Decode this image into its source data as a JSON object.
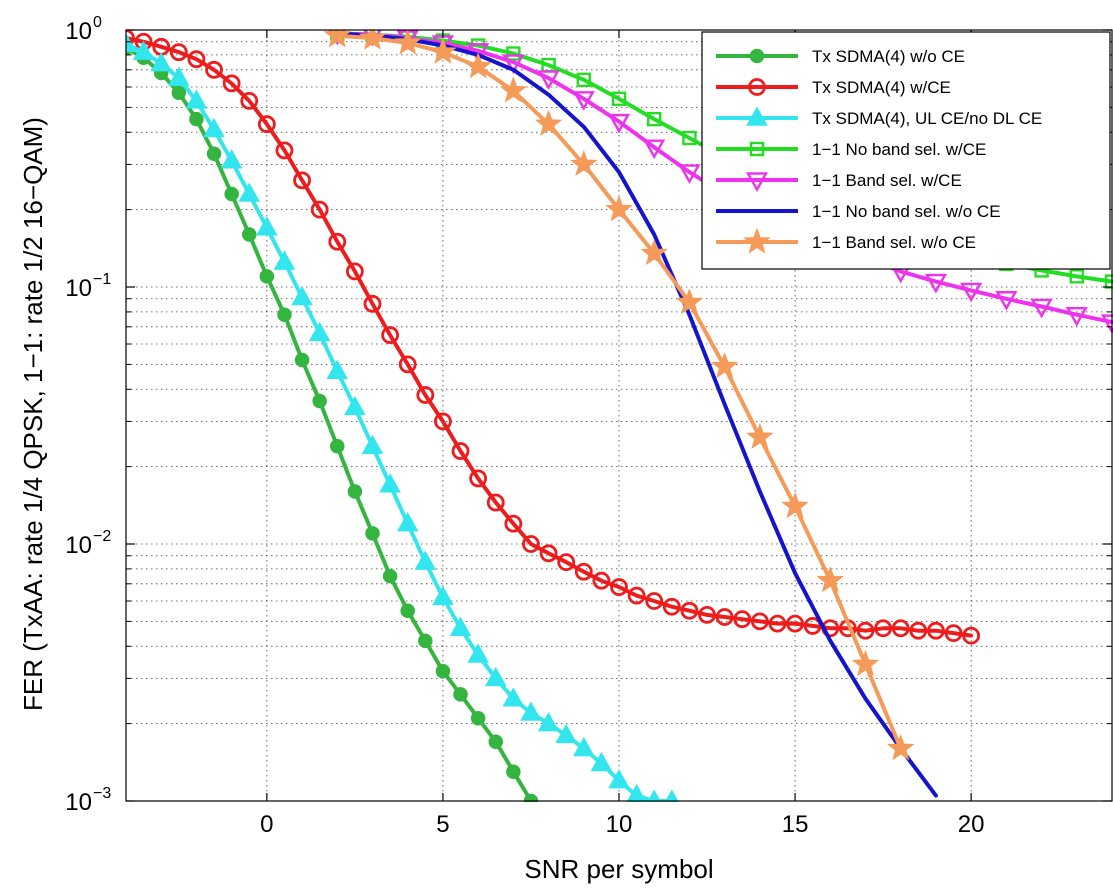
{
  "chart_data": {
    "type": "line",
    "title": "",
    "xlabel": "SNR per symbol",
    "ylabel": "FER (TxAA: rate 1/4 QPSK, 1−1: rate 1/2 16−QAM)",
    "xlim": [
      -4,
      24
    ],
    "ylim": [
      0.001,
      1
    ],
    "yscale": "log",
    "grid": true,
    "legend_position": "top-right",
    "x_ticks": [
      {
        "value": 0,
        "label": "0"
      },
      {
        "value": 5,
        "label": "5"
      },
      {
        "value": 10,
        "label": "10"
      },
      {
        "value": 15,
        "label": "15"
      },
      {
        "value": 20,
        "label": "20"
      }
    ],
    "y_ticks": [
      {
        "value": 0.001,
        "base": "10",
        "exp": "−3"
      },
      {
        "value": 0.01,
        "base": "10",
        "exp": "−2"
      },
      {
        "value": 0.1,
        "base": "10",
        "exp": "−1"
      },
      {
        "value": 1,
        "base": "10",
        "exp": "0"
      }
    ],
    "series": [
      {
        "name": "Tx SDMA(4) w/o CE",
        "color": "#33b540",
        "marker": "circle",
        "x": [
          -4,
          -3.5,
          -3,
          -2.5,
          -2,
          -1.5,
          -1,
          -0.5,
          0,
          0.5,
          1,
          1.5,
          2,
          2.5,
          3,
          3.5,
          4,
          4.5,
          5,
          5.5,
          6,
          6.5,
          7,
          7.5
        ],
        "y": [
          0.85,
          0.78,
          0.68,
          0.57,
          0.45,
          0.33,
          0.23,
          0.16,
          0.11,
          0.078,
          0.052,
          0.036,
          0.024,
          0.016,
          0.011,
          0.0075,
          0.0055,
          0.0042,
          0.0032,
          0.0026,
          0.0021,
          0.0017,
          0.0013,
          0.001
        ]
      },
      {
        "name": "Tx SDMA(4) w/CE",
        "color": "#ee1c1c",
        "marker": "open-circle",
        "x": [
          -4,
          -3.5,
          -3,
          -2.5,
          -2,
          -1.5,
          -1,
          -0.5,
          0,
          0.5,
          1,
          1.5,
          2,
          2.5,
          3,
          3.5,
          4,
          4.5,
          5,
          5.5,
          6,
          6.5,
          7,
          7.5,
          8,
          8.5,
          9,
          9.5,
          10,
          10.5,
          11,
          11.5,
          12,
          12.5,
          13,
          13.5,
          14,
          14.5,
          15,
          15.5,
          16,
          16.5,
          17,
          17.5,
          18,
          18.5,
          19,
          19.5,
          20
        ],
        "y": [
          0.93,
          0.9,
          0.86,
          0.82,
          0.77,
          0.7,
          0.62,
          0.53,
          0.43,
          0.34,
          0.26,
          0.2,
          0.15,
          0.115,
          0.086,
          0.065,
          0.05,
          0.038,
          0.03,
          0.023,
          0.018,
          0.0145,
          0.012,
          0.01,
          0.0092,
          0.0085,
          0.0078,
          0.0072,
          0.0068,
          0.0063,
          0.006,
          0.0057,
          0.0055,
          0.0053,
          0.0052,
          0.0051,
          0.005,
          0.0049,
          0.0049,
          0.0048,
          0.0047,
          0.0047,
          0.0046,
          0.0047,
          0.0047,
          0.0046,
          0.0046,
          0.0045,
          0.0044
        ]
      },
      {
        "name": "Tx SDMA(4), UL CE/no DL CE",
        "color": "#33e6ee",
        "marker": "triangle-up",
        "x": [
          -4,
          -3.5,
          -3,
          -2.5,
          -2,
          -1.5,
          -1,
          -0.5,
          0,
          0.5,
          1,
          1.5,
          2,
          2.5,
          3,
          3.5,
          4,
          4.5,
          5,
          5.5,
          6,
          6.5,
          7,
          7.5,
          8,
          8.5,
          9,
          9.5,
          10,
          10.5,
          11,
          11.5
        ],
        "y": [
          0.88,
          0.82,
          0.74,
          0.65,
          0.53,
          0.41,
          0.31,
          0.23,
          0.17,
          0.125,
          0.091,
          0.066,
          0.047,
          0.034,
          0.024,
          0.017,
          0.012,
          0.0085,
          0.0062,
          0.0047,
          0.0037,
          0.003,
          0.0025,
          0.0022,
          0.002,
          0.0018,
          0.0016,
          0.0014,
          0.0012,
          0.00105,
          0.001,
          0.001
        ]
      },
      {
        "name": "1−1 No band sel. w/CE",
        "color": "#22dd22",
        "marker": "open-square",
        "x": [
          2,
          3,
          4,
          5,
          6,
          7,
          8,
          9,
          10,
          11,
          12,
          13,
          14,
          15,
          16,
          17,
          18,
          19,
          20,
          21,
          22,
          23,
          24
        ],
        "y": [
          0.97,
          0.96,
          0.94,
          0.91,
          0.87,
          0.81,
          0.73,
          0.64,
          0.54,
          0.45,
          0.38,
          0.32,
          0.27,
          0.23,
          0.2,
          0.175,
          0.157,
          0.143,
          0.132,
          0.123,
          0.116,
          0.11,
          0.105
        ]
      },
      {
        "name": "1−1 Band sel. w/CE",
        "color": "#ee33ee",
        "marker": "triangle-down",
        "x": [
          2,
          3,
          4,
          5,
          6,
          7,
          8,
          9,
          10,
          11,
          12,
          13,
          14,
          15,
          16,
          17,
          18,
          19,
          20,
          21,
          22,
          23,
          24
        ],
        "y": [
          0.97,
          0.96,
          0.93,
          0.89,
          0.83,
          0.75,
          0.65,
          0.54,
          0.44,
          0.35,
          0.28,
          0.23,
          0.19,
          0.165,
          0.145,
          0.13,
          0.115,
          0.105,
          0.097,
          0.09,
          0.084,
          0.078,
          0.073
        ]
      },
      {
        "name": "1−1 No band sel. w/o CE",
        "color": "#1414cc",
        "marker": "none",
        "x": [
          2,
          3,
          4,
          5,
          6,
          7,
          8,
          9,
          10,
          11,
          12,
          13,
          14,
          15,
          16,
          17,
          18,
          19
        ],
        "y": [
          0.97,
          0.95,
          0.92,
          0.87,
          0.8,
          0.7,
          0.56,
          0.42,
          0.28,
          0.16,
          0.078,
          0.035,
          0.016,
          0.0077,
          0.0042,
          0.0025,
          0.0016,
          0.00105
        ]
      },
      {
        "name": "1−1 Band sel. w/o CE",
        "color": "#f59a58",
        "marker": "star",
        "x": [
          2,
          3,
          4,
          5,
          6,
          7,
          8,
          9,
          10,
          11,
          12,
          13,
          14,
          15,
          16,
          17,
          18
        ],
        "y": [
          0.95,
          0.93,
          0.89,
          0.82,
          0.72,
          0.58,
          0.43,
          0.3,
          0.2,
          0.135,
          0.087,
          0.049,
          0.026,
          0.014,
          0.0072,
          0.0034,
          0.0016
        ]
      }
    ]
  }
}
